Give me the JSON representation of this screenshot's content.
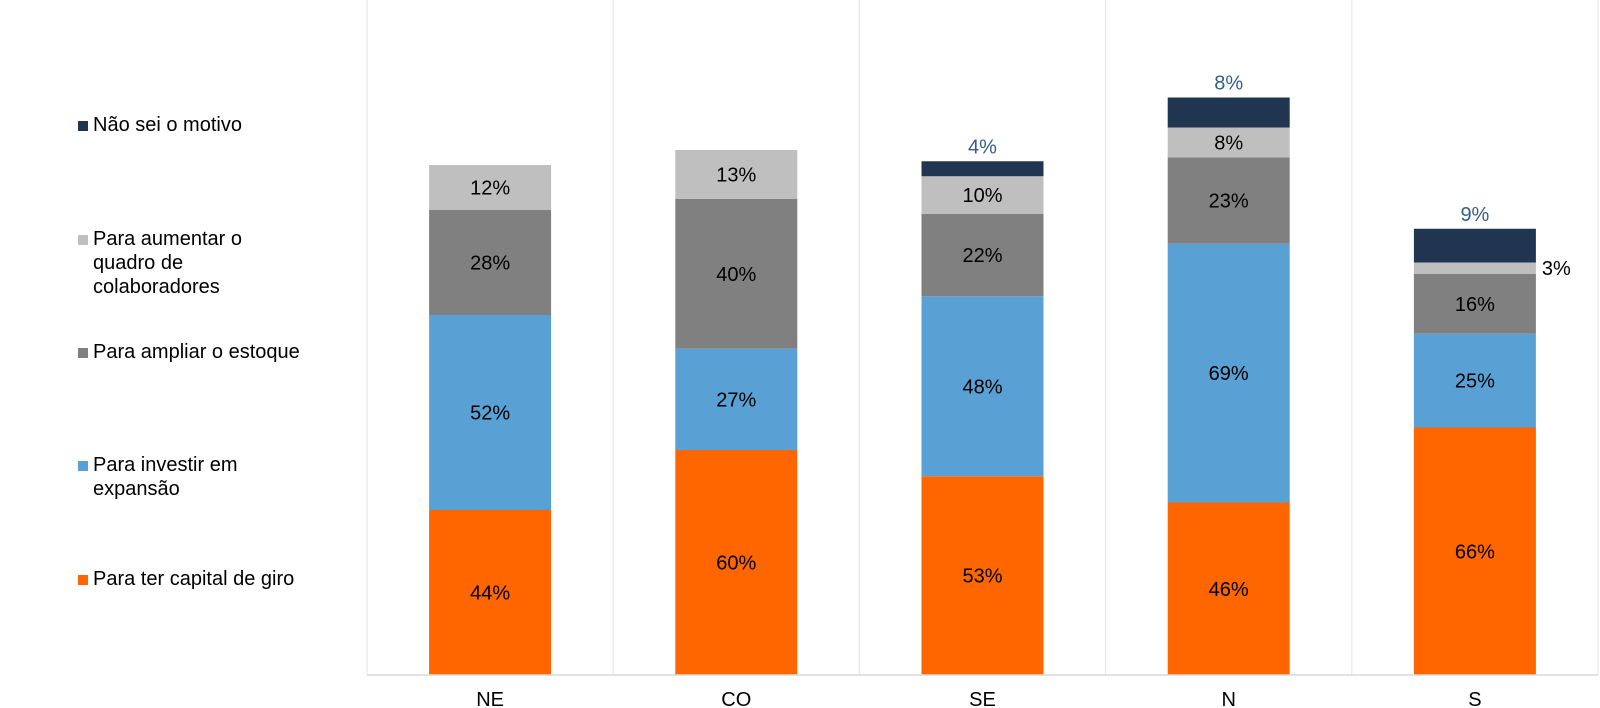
{
  "chart_data": {
    "type": "bar",
    "stacked": true,
    "percent_format": "%",
    "categories": [
      "NE",
      "CO",
      "SE",
      "N",
      "S"
    ],
    "series": [
      {
        "name": "Para ter capital de giro",
        "color": "#FF6600",
        "values": [
          44,
          60,
          53,
          46,
          66
        ],
        "labels": [
          "44%",
          "60%",
          "53%",
          "46%",
          "66%"
        ]
      },
      {
        "name": "Para investir em expansão",
        "color": "#59A1D5",
        "values": [
          52,
          27,
          48,
          69,
          25
        ],
        "labels": [
          "52%",
          "27%",
          "48%",
          "69%",
          "25%"
        ]
      },
      {
        "name": "Para ampliar o estoque",
        "color": "#808080",
        "values": [
          28,
          40,
          22,
          23,
          16
        ],
        "labels": [
          "28%",
          "40%",
          "22%",
          "23%",
          "16%"
        ]
      },
      {
        "name": "Para aumentar o quadro de colaboradores",
        "color": "#BFBFBF",
        "values": [
          12,
          13,
          10,
          8,
          3
        ],
        "labels": [
          "12%",
          "13%",
          "10%",
          "8%",
          "3%"
        ]
      },
      {
        "name": "Não sei o motivo",
        "color": "#203650",
        "values": [
          0,
          0,
          4,
          8,
          9
        ],
        "labels": [
          "",
          "",
          "4%",
          "8%",
          "9%"
        ]
      }
    ],
    "legend": {
      "position": "left",
      "lines": [
        [
          "Não sei o motivo"
        ],
        [
          "Para aumentar o",
          "quadro de",
          "colaboradores"
        ],
        [
          "Para ampliar o estoque"
        ],
        [
          "Para investir em",
          "expansão"
        ],
        [
          "Para ter capital de giro"
        ]
      ]
    },
    "grid": true,
    "ylim": [
      0,
      180
    ]
  }
}
